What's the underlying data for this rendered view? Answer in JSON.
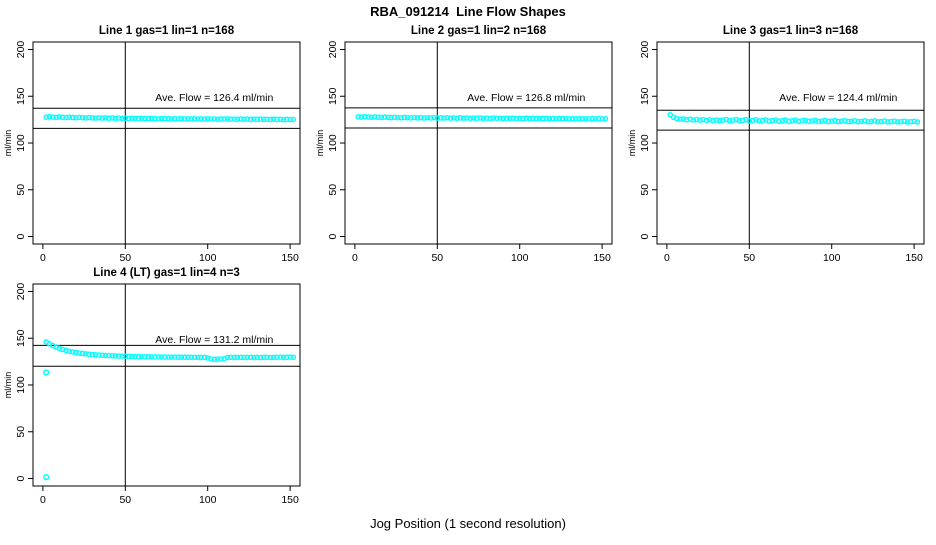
{
  "page": {
    "title": "RBA_091214  Line Flow Shapes",
    "xlabel": "Jog Position (1 second resolution)"
  },
  "colors": {
    "points": "#00FFFF",
    "axis": "#000000",
    "background": "#FFFFFF"
  },
  "chart_data": [
    {
      "type": "scatter",
      "title": "Line 1 gas=1 lin=1 n=168",
      "ylabel": "ml/min",
      "xlim": [
        0,
        150
      ],
      "ylim": [
        0,
        200
      ],
      "x_ticks": [
        0,
        50,
        100,
        150
      ],
      "y_ticks": [
        0,
        50,
        100,
        150,
        200
      ],
      "ave_flow": 126.4,
      "annotation": "Ave. Flow =  126.4  ml/min",
      "vline": 50,
      "hlines": [
        137.1,
        115.7
      ],
      "x_start": 2,
      "x_step": 2,
      "y_values": [
        127.6,
        128.1,
        127.8,
        127.4,
        127.9,
        127.5,
        127.2,
        127.6,
        127.3,
        127.0,
        127.4,
        127.1,
        126.8,
        127.2,
        126.9,
        126.7,
        127.0,
        126.6,
        126.9,
        126.5,
        126.8,
        126.4,
        126.7,
        126.3,
        126.6,
        126.2,
        126.5,
        126.3,
        126.0,
        126.4,
        126.1,
        125.9,
        126.3,
        126.0,
        125.8,
        126.2,
        125.9,
        126.1,
        125.7,
        126.0,
        125.8,
        126.1,
        125.6,
        125.9,
        125.7,
        126.0,
        125.6,
        125.8,
        125.5,
        125.9,
        125.6,
        125.8,
        125.4,
        125.7,
        125.5,
        125.8,
        125.4,
        125.6,
        125.3,
        125.7,
        125.4,
        125.6,
        125.2,
        125.5,
        125.3,
        125.6,
        125.2,
        125.4,
        125.1,
        125.5,
        125.2,
        125.4,
        125.0,
        125.3,
        125.1,
        125.2
      ],
      "outliers": []
    },
    {
      "type": "scatter",
      "title": "Line 2 gas=1 lin=2 n=168",
      "ylabel": "ml/min",
      "xlim": [
        0,
        150
      ],
      "ylim": [
        0,
        200
      ],
      "x_ticks": [
        0,
        50,
        100,
        150
      ],
      "y_ticks": [
        0,
        50,
        100,
        150,
        200
      ],
      "ave_flow": 126.8,
      "annotation": "Ave. Flow =  126.8  ml/min",
      "vline": 50,
      "hlines": [
        137.6,
        116.0
      ],
      "x_start": 2,
      "x_step": 2,
      "y_values": [
        128.0,
        127.7,
        128.2,
        127.8,
        127.5,
        127.9,
        127.6,
        127.3,
        127.7,
        127.4,
        127.1,
        127.5,
        127.2,
        127.0,
        127.3,
        127.1,
        126.8,
        127.2,
        126.9,
        127.1,
        126.7,
        127.0,
        126.8,
        127.1,
        126.6,
        126.9,
        126.7,
        127.0,
        126.6,
        126.8,
        126.5,
        126.9,
        126.6,
        126.8,
        126.4,
        126.7,
        126.5,
        126.8,
        126.4,
        126.6,
        126.3,
        126.7,
        126.4,
        126.6,
        126.2,
        126.5,
        126.3,
        126.6,
        126.2,
        126.4,
        126.1,
        126.5,
        126.2,
        126.4,
        126.0,
        126.3,
        126.1,
        126.4,
        126.0,
        126.2,
        125.9,
        126.3,
        126.0,
        126.2,
        125.8,
        126.1,
        125.9,
        126.2,
        125.8,
        126.0,
        125.7,
        126.1,
        125.8,
        126.0,
        125.6,
        125.9
      ],
      "outliers": []
    },
    {
      "type": "scatter",
      "title": "Line 3 gas=1 lin=3 n=168",
      "ylabel": "ml/min",
      "xlim": [
        0,
        150
      ],
      "ylim": [
        0,
        200
      ],
      "x_ticks": [
        0,
        50,
        100,
        150
      ],
      "y_ticks": [
        0,
        50,
        100,
        150,
        200
      ],
      "ave_flow": 124.4,
      "annotation": "Ave. Flow =  124.4  ml/min",
      "vline": 50,
      "hlines": [
        135.0,
        113.8
      ],
      "x_start": 2,
      "x_step": 2,
      "y_values": [
        130.2,
        127.5,
        126.2,
        125.4,
        125.8,
        124.9,
        125.5,
        124.6,
        125.2,
        124.4,
        125.0,
        124.2,
        124.8,
        124.0,
        124.6,
        123.9,
        124.5,
        125.1,
        123.8,
        124.4,
        125.0,
        123.7,
        124.3,
        124.9,
        123.6,
        124.2,
        124.8,
        123.5,
        124.1,
        124.7,
        123.4,
        124.0,
        124.6,
        123.3,
        123.9,
        124.5,
        123.2,
        123.8,
        124.4,
        123.2,
        123.7,
        124.3,
        123.1,
        123.6,
        124.2,
        123.0,
        123.5,
        124.1,
        123.0,
        123.4,
        124.0,
        122.9,
        123.3,
        123.9,
        122.8,
        123.2,
        123.8,
        122.8,
        123.1,
        123.7,
        122.7,
        123.0,
        123.6,
        122.7,
        123.0,
        123.5,
        122.6,
        122.9,
        123.4,
        122.6,
        122.8,
        123.3,
        122.5,
        122.8,
        123.2,
        122.5
      ],
      "outliers": []
    },
    {
      "type": "scatter",
      "title": "Line 4 (LT) gas=1 lin=4 n=3",
      "ylabel": "ml/min",
      "xlim": [
        0,
        150
      ],
      "ylim": [
        0,
        200
      ],
      "x_ticks": [
        0,
        50,
        100,
        150
      ],
      "y_ticks": [
        0,
        50,
        100,
        150,
        200
      ],
      "ave_flow": 131.2,
      "annotation": "Ave. Flow =  131.2  ml/min",
      "vline": 50,
      "hlines": [
        142.4,
        120.0
      ],
      "x_start": 2,
      "x_step": 2,
      "y_values": [
        146.0,
        144.0,
        142.2,
        140.6,
        139.2,
        138.0,
        137.0,
        136.1,
        135.4,
        134.8,
        134.2,
        133.7,
        133.3,
        132.9,
        132.6,
        132.3,
        132.0,
        131.8,
        131.6,
        131.4,
        131.2,
        131.1,
        130.9,
        130.8,
        130.7,
        130.6,
        130.5,
        130.4,
        130.3,
        130.3,
        130.2,
        130.1,
        130.1,
        130.0,
        130.0,
        129.9,
        129.9,
        129.8,
        129.8,
        129.8,
        129.7,
        129.7,
        129.7,
        129.6,
        129.6,
        129.6,
        129.5,
        129.5,
        129.5,
        128.9,
        127.8,
        127.5,
        127.6,
        127.8,
        128.0,
        129.4,
        129.6,
        129.5,
        129.5,
        129.6,
        129.4,
        129.5,
        129.6,
        129.4,
        129.5,
        129.4,
        129.6,
        129.5,
        129.4,
        129.5,
        129.6,
        129.8,
        129.5,
        129.7,
        129.9,
        129.6
      ],
      "outliers": [
        [
          2,
          113.5
        ],
        [
          2,
          1.5
        ]
      ]
    }
  ]
}
